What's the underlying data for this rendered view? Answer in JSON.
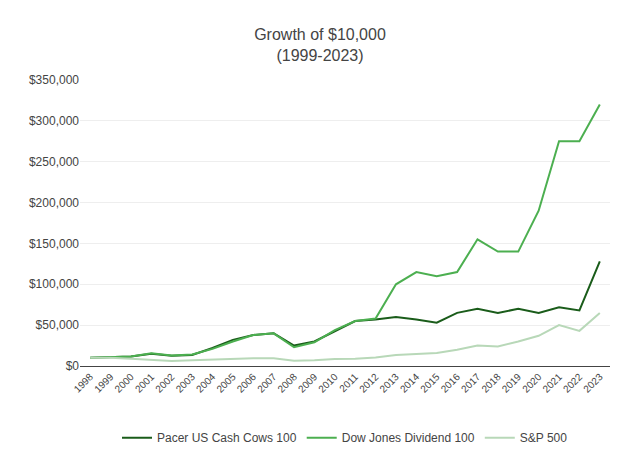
{
  "chart_data": {
    "type": "line",
    "title": "Growth of $10,000\n(1999-2023)",
    "x": [
      1998,
      1999,
      2000,
      2001,
      2002,
      2003,
      2004,
      2005,
      2006,
      2007,
      2008,
      2009,
      2010,
      2011,
      2012,
      2013,
      2014,
      2015,
      2016,
      2017,
      2018,
      2019,
      2020,
      2021,
      2022,
      2023
    ],
    "series": [
      {
        "name": "Pacer US Cash Cows 100",
        "color": "#1a5c1a",
        "values": [
          10000,
          10500,
          11500,
          15000,
          12500,
          13500,
          22000,
          32000,
          38000,
          40000,
          25000,
          30000,
          42000,
          55000,
          57000,
          60000,
          57000,
          53000,
          65000,
          70000,
          65000,
          70000,
          65000,
          72000,
          68000,
          128000
        ]
      },
      {
        "name": "Dow Jones Dividend 100",
        "color": "#4caf50",
        "values": [
          10000,
          10800,
          11500,
          15500,
          13000,
          14000,
          21000,
          30000,
          38000,
          40000,
          23000,
          29000,
          44000,
          55000,
          58000,
          100000,
          115000,
          110000,
          115000,
          155000,
          140000,
          140000,
          190000,
          275000,
          275000,
          320000
        ]
      },
      {
        "name": "S&P 500",
        "color": "#b8d8b8",
        "values": [
          10000,
          10000,
          9000,
          7500,
          6000,
          7000,
          8000,
          8500,
          9500,
          9500,
          6500,
          7000,
          8500,
          9000,
          10500,
          13500,
          15000,
          16000,
          20000,
          25000,
          24000,
          30000,
          37000,
          50000,
          43000,
          65000
        ]
      }
    ],
    "xlim": [
      1997.5,
      2023.5
    ],
    "xticks": [
      1998,
      1999,
      2000,
      2001,
      2002,
      2003,
      2004,
      2005,
      2006,
      2007,
      2008,
      2009,
      2010,
      2011,
      2012,
      2013,
      2014,
      2015,
      2016,
      2017,
      2018,
      2019,
      2020,
      2021,
      2022,
      2023
    ],
    "ylim": [
      0,
      350000
    ],
    "yticks": [
      {
        "value": 0,
        "label": "$0"
      },
      {
        "value": 50000,
        "label": "$50,000"
      },
      {
        "value": 100000,
        "label": "$100,000"
      },
      {
        "value": 150000,
        "label": "$150,000"
      },
      {
        "value": 200000,
        "label": "$200,000"
      },
      {
        "value": 250000,
        "label": "$250,000"
      },
      {
        "value": 300000,
        "label": "$300,000"
      },
      {
        "value": 350000,
        "label": "$350,000"
      }
    ],
    "grid": "y",
    "legend": "bottom"
  }
}
